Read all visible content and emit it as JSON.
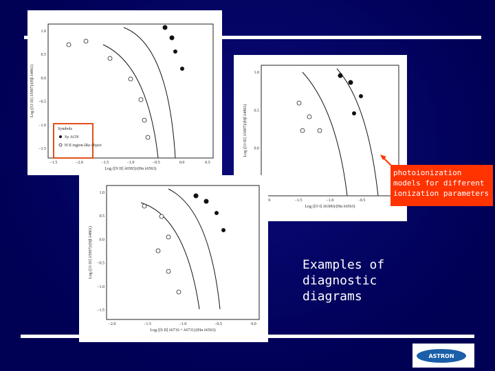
{
  "plots": [
    {
      "x_label": "Log ([N II] λ6583)/(Hα λ6563)",
      "y_label": "Log ([O III] λ5007)/(Hβ λ4861)",
      "xticks": [
        "−1.5",
        "−2.0",
        "−1.5",
        "−1.0",
        "−0.5",
        "0.0",
        "0.5"
      ],
      "yticks": [
        "1.0",
        "0.5",
        "0.0",
        "−0.5",
        "−1.0",
        "−1.5"
      ],
      "legend": {
        "title": "Symbols",
        "items": [
          "Sy AGN",
          "H II region-like object"
        ]
      }
    },
    {
      "x_label": "Log ([O I] λ6300)/(Hα λ6563)",
      "y_label": "Log ([O III] λ5007)/(Hβ λ4861)",
      "xticks": [
        "−2.0",
        "−1.5",
        "−1.0",
        "−0.5",
        "0.0"
      ],
      "yticks": [
        "1.0",
        "0.5",
        "0.0",
        "−0.5"
      ]
    },
    {
      "x_label": "Log ([S II] λ6716 + λ6731)/(Hα λ6563)",
      "y_label": "Log ([O III] λ5007)/(Hβ λ4861)",
      "xticks": [
        "−2.0",
        "−1.5",
        "−1.0",
        "−0.5",
        "0.0"
      ],
      "yticks": [
        "1.0",
        "0.5",
        "0.0",
        "−0.5",
        "−1.0",
        "−1.5"
      ]
    }
  ],
  "annotation": "photoionization models for different ionization parameters",
  "caption": "Examples of diagnostic diagrams",
  "logo": "ASTRON"
}
